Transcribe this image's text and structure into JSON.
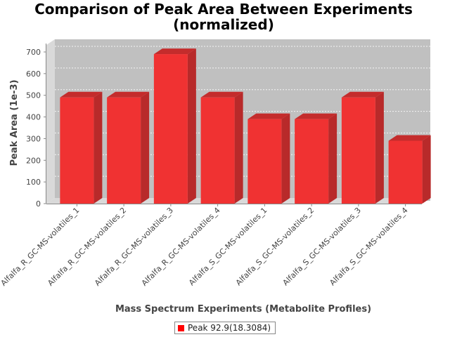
{
  "chart_data": {
    "type": "bar",
    "title_line1": "Comparison of Peak Area Between Experiments",
    "title_line2": "(normalized)",
    "xlabel": "Mass Spectrum Experiments (Metabolite Profiles)",
    "ylabel": "Peak Area (1e-3)",
    "categories": [
      "Alfalfa_R_GC-MS-volatiles_1",
      "Alfalfa_R_GC-MS-volatiles_2",
      "Alfalfa_R_GC-MS-volatiles_3",
      "Alfalfa_R_GC-MS-volatiles_4",
      "Alfalfa_S_GC-MS-volatiles_1",
      "Alfalfa_S_GC-MS-volatiles_2",
      "Alfalfa_S_GC-MS-volatiles_3",
      "Alfalfa_S_GC-MS-volatiles_4"
    ],
    "series": [
      {
        "name": "Peak 92.9(18.3084)",
        "values": [
          490,
          490,
          690,
          490,
          390,
          390,
          490,
          290
        ]
      }
    ],
    "ylim": [
      0,
      700
    ],
    "yticks": [
      "0",
      "100",
      "200",
      "300",
      "400",
      "500",
      "600",
      "700"
    ],
    "grid": true,
    "style": "3d",
    "legend_position": "bottom",
    "colors": {
      "bar_front": "#f03232",
      "bar_side": "#b82a2a",
      "bar_top": "#c42c2c",
      "plot_back": "#c0c0c0",
      "plot_wall": "#d9d9d9",
      "legend_swatch": "#ff0000"
    }
  }
}
